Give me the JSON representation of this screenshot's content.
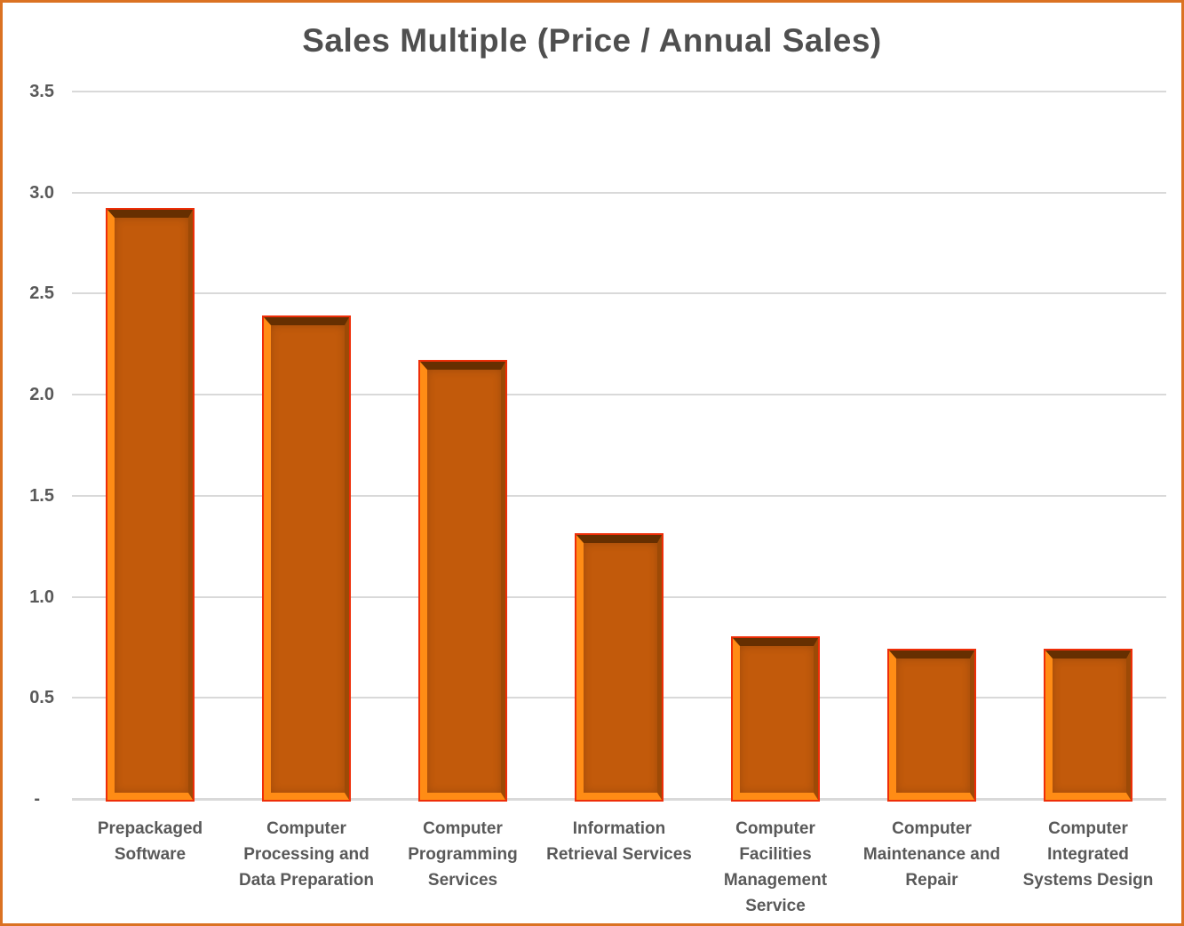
{
  "chart_data": {
    "type": "bar",
    "title": "Sales Multiple (Price / Annual Sales)",
    "categories": [
      {
        "label": "Prepackaged Software",
        "lines": [
          "Prepackaged",
          "Software"
        ]
      },
      {
        "label": "Computer Processing and Data Preparation",
        "lines": [
          "Computer",
          "Processing and",
          "Data Preparation"
        ]
      },
      {
        "label": "Computer Programming Services",
        "lines": [
          "Computer",
          "Programming",
          "Services"
        ]
      },
      {
        "label": "Information Retrieval Services",
        "lines": [
          "Information",
          "Retrieval Services"
        ]
      },
      {
        "label": "Computer Facilities Management Service",
        "lines": [
          "Computer",
          "Facilities",
          "Management",
          "Service"
        ]
      },
      {
        "label": "Computer Maintenance and Repair",
        "lines": [
          "Computer",
          "Maintenance and",
          "Repair"
        ]
      },
      {
        "label": "Computer Integrated Systems Design",
        "lines": [
          "Computer",
          "Integrated",
          "Systems Design"
        ]
      }
    ],
    "values": [
      2.91,
      2.38,
      2.16,
      1.3,
      0.79,
      0.73,
      0.73
    ],
    "xlabel": "",
    "ylabel": "",
    "ylim": [
      0,
      3.5
    ],
    "grid": true,
    "legend_position": "none",
    "y_ticks": [
      {
        "label": "3.5",
        "value": 3.5
      },
      {
        "label": "3.0",
        "value": 3.0
      },
      {
        "label": "2.5",
        "value": 2.5
      },
      {
        "label": "2.0",
        "value": 2.0
      },
      {
        "label": "1.5",
        "value": 1.5
      },
      {
        "label": "1.0",
        "value": 1.0
      },
      {
        "label": "0.5",
        "value": 0.5
      },
      {
        "label": "-",
        "value": 0
      }
    ],
    "colors": {
      "frame_border": "#DB7222",
      "title_text": "#4F4F4F",
      "axis_text": "#595959",
      "gridline": "#D9D9D9",
      "bar_core": "#C25A0B",
      "bar_highlight": "#FF8C15",
      "bar_top_shadow": "#662F01",
      "bar_right_shade": "#9D4A06",
      "bar_outline": "#EE2E08"
    }
  }
}
